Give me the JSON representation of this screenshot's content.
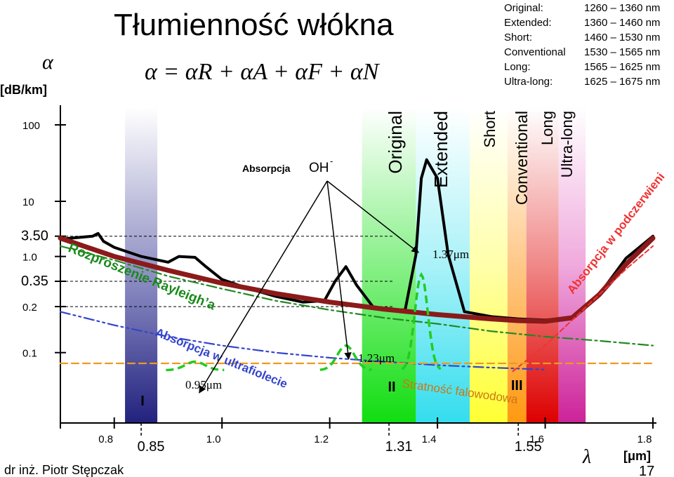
{
  "slide": {
    "title": "Tłumienność włókna",
    "formula": "α = αR + αA + αF + αN",
    "author": "dr inż. Piotr Stępczak",
    "page": "17"
  },
  "bands_table": [
    {
      "name": "Original:",
      "range": "1260 – 1360 nm"
    },
    {
      "name": "Extended:",
      "range": "1360 – 1460 nm"
    },
    {
      "name": "Short:",
      "range": "1460 – 1530 nm"
    },
    {
      "name": "Conventional",
      "range": "1530 – 1565 nm"
    },
    {
      "name": "Long:",
      "range": "1565 – 1625 nm"
    },
    {
      "name": "Ultra-long:",
      "range": "1625 – 1675 nm"
    }
  ],
  "chart_data": {
    "type": "line",
    "xlabel": "λ",
    "xunit": "[μm]",
    "ylabel": "α",
    "yunit": "[dB/km]",
    "xlim": [
      0.7,
      1.8
    ],
    "ylim": [
      0.06,
      150
    ],
    "yscale": "log",
    "x_ticks": [
      "0.8",
      "1.0",
      "1.2",
      "1.4",
      "1.6",
      "1.8"
    ],
    "x_highlight_ticks": [
      "0.85",
      "1.31",
      "1.55"
    ],
    "y_ticks": [
      "100",
      "10",
      "3.50",
      "1.0",
      "0.35",
      "0.2",
      "0.1"
    ],
    "bands": [
      {
        "label": "Original",
        "from": 1.26,
        "to": 1.36,
        "color": "#22dd22"
      },
      {
        "label": "Extended",
        "from": 1.36,
        "to": 1.46,
        "color": "#44ddee"
      },
      {
        "label": "Short",
        "from": 1.46,
        "to": 1.53,
        "color": "#ffff55"
      },
      {
        "label": "Conventional",
        "from": 1.53,
        "to": 1.565,
        "color": "#ff9922"
      },
      {
        "label": "Long",
        "from": 1.565,
        "to": 1.625,
        "color": "#dd1111"
      },
      {
        "label": "Ultra-long",
        "from": 1.625,
        "to": 1.675,
        "color": "#dd33aa"
      }
    ],
    "window_850": {
      "from": 0.82,
      "to": 0.88,
      "color": "#2a2a88"
    },
    "series": [
      {
        "key": "measured",
        "color": "#000000",
        "x": [
          0.7,
          0.76,
          0.77,
          0.78,
          0.8,
          0.85,
          0.9,
          0.92,
          0.95,
          0.97,
          1.0,
          1.05,
          1.1,
          1.15,
          1.19,
          1.21,
          1.23,
          1.25,
          1.28,
          1.31,
          1.34,
          1.36,
          1.37,
          1.38,
          1.4,
          1.42,
          1.45,
          1.5,
          1.55,
          1.6,
          1.65,
          1.7,
          1.75,
          1.8
        ],
        "y": [
          3.2,
          3.5,
          3.8,
          3.0,
          2.5,
          1.9,
          1.6,
          1.9,
          1.85,
          1.4,
          0.95,
          0.72,
          0.57,
          0.48,
          0.5,
          0.9,
          1.4,
          0.8,
          0.42,
          0.38,
          0.38,
          2.0,
          20,
          35,
          20,
          2.0,
          0.36,
          0.31,
          0.29,
          0.28,
          0.3,
          0.6,
          1.8,
          3.5
        ]
      },
      {
        "key": "total",
        "color": "#8b1a1a",
        "x": [
          0.7,
          0.8,
          0.9,
          1.0,
          1.1,
          1.2,
          1.3,
          1.4,
          1.5,
          1.55,
          1.6,
          1.65,
          1.7,
          1.75,
          1.8
        ],
        "y": [
          3.3,
          1.9,
          1.25,
          0.85,
          0.62,
          0.48,
          0.39,
          0.33,
          0.29,
          0.275,
          0.27,
          0.3,
          0.6,
          1.5,
          3.3
        ]
      },
      {
        "key": "rayleigh",
        "color": "#228822",
        "x": [
          0.7,
          0.8,
          0.9,
          1.0,
          1.1,
          1.2,
          1.3,
          1.4,
          1.5,
          1.6,
          1.7,
          1.8
        ],
        "y": [
          2.6,
          1.7,
          1.05,
          0.72,
          0.5,
          0.38,
          0.3,
          0.25,
          0.2,
          0.17,
          0.15,
          0.13
        ]
      },
      {
        "key": "uv",
        "color": "#3344cc",
        "x": [
          0.7,
          0.8,
          0.9,
          1.0,
          1.1,
          1.2,
          1.3,
          1.4,
          1.5,
          1.6
        ],
        "y": [
          0.36,
          0.24,
          0.17,
          0.13,
          0.105,
          0.09,
          0.08,
          0.072,
          0.067,
          0.063
        ]
      },
      {
        "key": "ir",
        "color": "#ee3333",
        "x": [
          1.54,
          1.6,
          1.65,
          1.7,
          1.75,
          1.8
        ],
        "y": [
          0.06,
          0.13,
          0.28,
          0.6,
          1.3,
          2.6
        ]
      },
      {
        "key": "waveguide",
        "color": "#ee9922",
        "x": [
          0.7,
          1.8
        ],
        "y": [
          0.076,
          0.076
        ]
      }
    ],
    "oh_peaks": [
      {
        "label": "0.95μm",
        "center": 0.95,
        "height": 0.08
      },
      {
        "label": "1.23μm",
        "center": 1.23,
        "height": 0.13
      },
      {
        "label": "1.37μm",
        "center": 1.37,
        "height": 1.1
      }
    ],
    "annotations": {
      "rayleigh": "Rozproszenie Rayleigh’a",
      "uv": "Absorpcja w ultrafiolecie",
      "ir": "Absorpcja w podczerwieni",
      "waveguide": "Stratność falowodowa",
      "oh_prefix": "Absorpcja",
      "oh": "OH",
      "oh_sup": "-",
      "window_marks": [
        "I",
        "II",
        "III"
      ]
    },
    "grid": false,
    "legend": "none"
  }
}
